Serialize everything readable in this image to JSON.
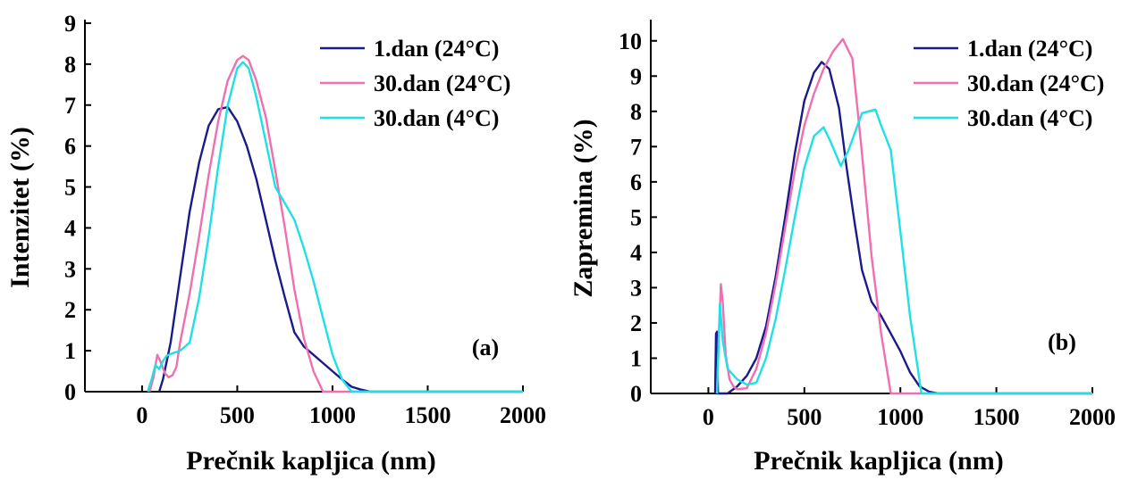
{
  "chart_data": [
    {
      "type": "line",
      "panel_label": "(a)",
      "xlabel": "Prečnik kapljica (nm)",
      "ylabel": "Intenzitet (%)",
      "xlim": [
        -300,
        2000
      ],
      "ylim": [
        0,
        9
      ],
      "xticks": [
        0,
        500,
        1000,
        1500,
        2000
      ],
      "yticks": [
        0,
        1,
        2,
        3,
        4,
        5,
        6,
        7,
        8,
        9
      ],
      "legend_position": "top-right",
      "series": [
        {
          "name": "1.dan (24°C)",
          "color": "#1a1a8c",
          "x": [
            90,
            110,
            150,
            200,
            250,
            300,
            350,
            400,
            450,
            500,
            550,
            600,
            650,
            700,
            750,
            800,
            850,
            900,
            950,
            1000,
            1050,
            1100,
            1150,
            1200,
            2000
          ],
          "y": [
            0,
            0.3,
            1.2,
            2.8,
            4.4,
            5.6,
            6.5,
            6.9,
            6.95,
            6.6,
            6.0,
            5.2,
            4.2,
            3.2,
            2.3,
            1.45,
            1.1,
            0.9,
            0.7,
            0.5,
            0.3,
            0.12,
            0.05,
            0,
            0
          ]
        },
        {
          "name": "30.dan (24°C)",
          "color": "#f06fae",
          "x": [
            40,
            60,
            80,
            100,
            120,
            140,
            160,
            180,
            200,
            250,
            300,
            350,
            400,
            450,
            500,
            530,
            560,
            600,
            650,
            700,
            750,
            800,
            850,
            900,
            950,
            2000
          ],
          "y": [
            0,
            0.35,
            0.9,
            0.7,
            0.45,
            0.35,
            0.4,
            0.6,
            1.2,
            2.4,
            3.8,
            5.3,
            6.6,
            7.6,
            8.1,
            8.2,
            8.1,
            7.6,
            6.7,
            5.4,
            4.0,
            2.5,
            1.3,
            0.5,
            0,
            0
          ]
        },
        {
          "name": "30.dan (4°C)",
          "color": "#1fe0e6",
          "x": [
            30,
            50,
            70,
            90,
            110,
            130,
            150,
            200,
            250,
            300,
            350,
            400,
            450,
            500,
            530,
            560,
            600,
            650,
            700,
            750,
            800,
            850,
            900,
            950,
            1000,
            1050,
            1100,
            2000
          ],
          "y": [
            0,
            0.3,
            0.65,
            0.55,
            0.75,
            0.88,
            0.92,
            1.0,
            1.2,
            2.3,
            3.8,
            5.5,
            7.0,
            7.9,
            8.05,
            7.9,
            7.2,
            6.1,
            5.0,
            4.6,
            4.2,
            3.5,
            2.7,
            1.8,
            0.9,
            0.3,
            0,
            0
          ]
        }
      ]
    },
    {
      "type": "line",
      "panel_label": "(b)",
      "xlabel": "Prečnik kapljica (nm)",
      "ylabel": "Zapremina (%)",
      "xlim": [
        -300,
        2000
      ],
      "ylim": [
        0,
        10.5
      ],
      "xticks": [
        0,
        500,
        1000,
        1500,
        2000
      ],
      "yticks": [
        0,
        1,
        2,
        3,
        4,
        5,
        6,
        7,
        8,
        9,
        10
      ],
      "legend_position": "top-right",
      "series": [
        {
          "name": "1.dan (24°C)",
          "color": "#1a1a8c",
          "x": [
            35,
            40,
            45,
            50,
            100,
            150,
            200,
            250,
            300,
            350,
            400,
            450,
            500,
            550,
            590,
            630,
            680,
            720,
            760,
            800,
            850,
            900,
            950,
            1000,
            1050,
            1100,
            1150,
            1200,
            2000
          ],
          "y": [
            0,
            1.7,
            1.75,
            0,
            0,
            0.2,
            0.5,
            1.0,
            1.9,
            3.3,
            5.0,
            6.8,
            8.3,
            9.1,
            9.4,
            9.2,
            8.1,
            6.4,
            4.9,
            3.5,
            2.6,
            2.2,
            1.7,
            1.2,
            0.6,
            0.2,
            0.05,
            0,
            0
          ]
        },
        {
          "name": "30.dan (24°C)",
          "color": "#f06fae",
          "x": [
            45,
            55,
            65,
            75,
            90,
            110,
            130,
            150,
            200,
            250,
            300,
            350,
            400,
            450,
            500,
            550,
            600,
            650,
            700,
            750,
            800,
            850,
            900,
            950,
            2000
          ],
          "y": [
            0,
            1.6,
            3.1,
            2.6,
            1.1,
            0.4,
            0.2,
            0.12,
            0.15,
            0.7,
            1.7,
            3.1,
            4.7,
            6.3,
            7.6,
            8.5,
            9.2,
            9.7,
            10.05,
            9.5,
            6.8,
            3.9,
            1.7,
            0,
            0
          ]
        },
        {
          "name": "30.dan (4°C)",
          "color": "#1fe0e6",
          "x": [
            45,
            60,
            75,
            100,
            150,
            200,
            250,
            300,
            350,
            400,
            450,
            500,
            550,
            600,
            640,
            690,
            730,
            800,
            870,
            900,
            950,
            1000,
            1050,
            1110,
            2000
          ],
          "y": [
            0,
            2.55,
            1.5,
            0.7,
            0.4,
            0.25,
            0.3,
            1.0,
            2.1,
            3.5,
            5.0,
            6.4,
            7.3,
            7.55,
            7.1,
            6.45,
            6.9,
            7.95,
            8.05,
            7.6,
            6.9,
            4.6,
            2.2,
            0,
            0
          ]
        }
      ]
    }
  ]
}
